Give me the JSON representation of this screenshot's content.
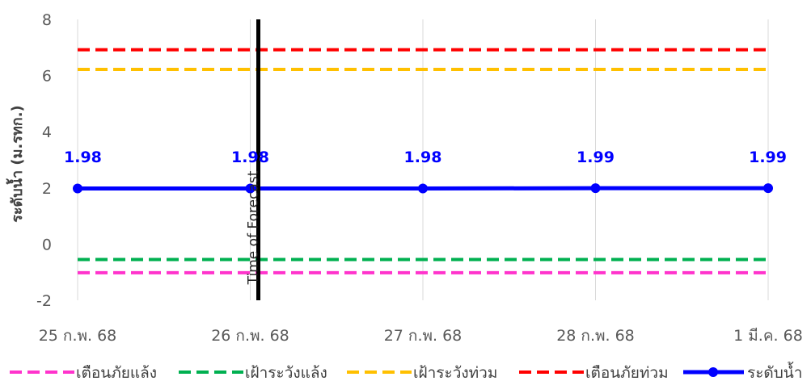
{
  "chart_data": {
    "type": "line",
    "title": "",
    "xlabel": "",
    "ylabel": "ระดับน้ำ (ม.รทก.)",
    "categories": [
      "25 ก.พ. 68",
      "26 ก.พ. 68",
      "27 ก.พ. 68",
      "28 ก.พ. 68",
      "1 มี.ค. 68"
    ],
    "ylim": [
      -2,
      8
    ],
    "yticks": [
      -2,
      0,
      2,
      4,
      6,
      8
    ],
    "grid": "vertical",
    "legend_position": "bottom",
    "thresholds": [
      {
        "name": "เตือนภัยแล้ง",
        "value": -1.02,
        "color": "#ff33cc",
        "style": "dashed"
      },
      {
        "name": "เฝ้าระวังแล้ง",
        "value": -0.55,
        "color": "#00b050",
        "style": "dashed"
      },
      {
        "name": "เฝ้าระวังท่วม",
        "value": 6.22,
        "color": "#ffc000",
        "style": "dashed"
      },
      {
        "name": "เตือนภัยท่วม",
        "value": 6.92,
        "color": "#ff0000",
        "style": "dashed"
      }
    ],
    "series": [
      {
        "name": "ระดับน้ำ",
        "color": "#0000ff",
        "style": "solid-marker",
        "values": [
          1.98,
          1.98,
          1.98,
          1.99,
          1.99
        ],
        "labels": [
          "1.98",
          "1.98",
          "1.98",
          "1.99",
          "1.99"
        ]
      }
    ],
    "annotations": [
      {
        "text": "Time of Forecast",
        "x_index": 1,
        "color": "#000000"
      }
    ]
  }
}
